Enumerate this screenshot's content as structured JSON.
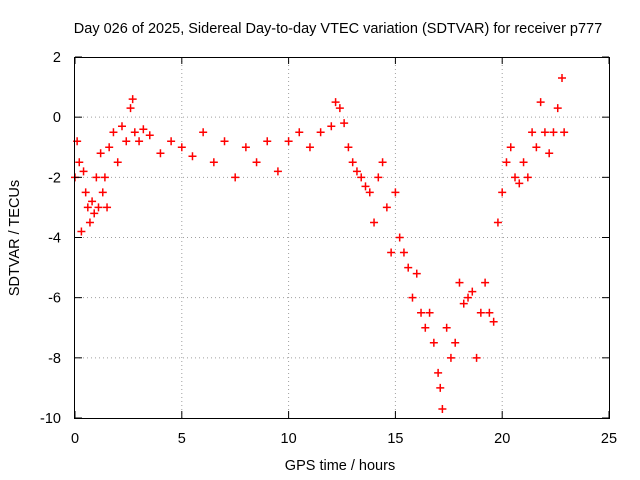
{
  "chart_data": {
    "type": "scatter",
    "title": "Day 026 of 2025, Sidereal Day-to-day VTEC variation (SDTVAR) for receiver p777",
    "xlabel": "GPS time / hours",
    "ylabel": "SDTVAR / TECUs",
    "xlim": [
      0,
      25
    ],
    "ylim": [
      -10,
      2
    ],
    "grid": true,
    "marker": "plus",
    "x_ticks": [
      0,
      5,
      10,
      15,
      20,
      25
    ],
    "x_tick_labels": [
      "0",
      "5",
      "10",
      "15",
      "20",
      "25"
    ],
    "y_ticks": [
      -10,
      -8,
      -6,
      -4,
      -2,
      0,
      2
    ],
    "y_tick_labels": [
      "-10",
      "-8",
      "-6",
      "-4",
      "-2",
      "0",
      "2"
    ],
    "series": [
      {
        "name": "SDTVAR",
        "color": "#ff0000",
        "x": [
          0.0,
          0.1,
          0.2,
          0.3,
          0.4,
          0.5,
          0.6,
          0.7,
          0.8,
          0.9,
          1.0,
          1.1,
          1.2,
          1.3,
          1.4,
          1.5,
          1.6,
          1.8,
          2.0,
          2.2,
          2.4,
          2.6,
          2.7,
          2.8,
          3.0,
          3.2,
          3.5,
          4.0,
          4.5,
          5.0,
          5.5,
          6.0,
          6.5,
          7.0,
          7.5,
          8.0,
          8.5,
          9.0,
          9.5,
          10.0,
          10.5,
          11.0,
          11.5,
          12.0,
          12.2,
          12.4,
          12.6,
          12.8,
          13.0,
          13.2,
          13.4,
          13.6,
          13.8,
          14.0,
          14.2,
          14.4,
          14.6,
          14.8,
          15.0,
          15.2,
          15.4,
          15.6,
          15.8,
          16.0,
          16.2,
          16.4,
          16.6,
          16.8,
          17.0,
          17.1,
          17.2,
          17.4,
          17.6,
          17.8,
          18.0,
          18.2,
          18.4,
          18.6,
          18.8,
          19.0,
          19.2,
          19.4,
          19.6,
          19.8,
          20.0,
          20.2,
          20.4,
          20.6,
          20.8,
          21.0,
          21.2,
          21.4,
          21.6,
          21.8,
          22.0,
          22.2,
          22.4,
          22.6,
          22.8,
          22.9
        ],
        "y": [
          -2.0,
          -0.8,
          -1.5,
          -3.8,
          -1.8,
          -2.5,
          -3.0,
          -3.5,
          -2.8,
          -3.2,
          -2.0,
          -3.0,
          -1.2,
          -2.5,
          -2.0,
          -3.0,
          -1.0,
          -0.5,
          -1.5,
          -0.3,
          -0.8,
          0.3,
          0.6,
          -0.5,
          -0.8,
          -0.4,
          -0.6,
          -1.2,
          -0.8,
          -1.0,
          -1.3,
          -0.5,
          -1.5,
          -0.8,
          -2.0,
          -1.0,
          -1.5,
          -0.8,
          -1.8,
          -0.8,
          -0.5,
          -1.0,
          -0.5,
          -0.3,
          0.5,
          0.3,
          -0.2,
          -1.0,
          -1.5,
          -1.8,
          -2.0,
          -2.3,
          -2.5,
          -3.5,
          -2.0,
          -1.5,
          -3.0,
          -4.5,
          -2.5,
          -4.0,
          -4.5,
          -5.0,
          -6.0,
          -5.2,
          -6.5,
          -7.0,
          -6.5,
          -7.5,
          -8.5,
          -9.0,
          -9.7,
          -7.0,
          -8.0,
          -7.5,
          -5.5,
          -6.2,
          -6.0,
          -5.8,
          -8.0,
          -6.5,
          -5.5,
          -6.5,
          -6.8,
          -3.5,
          -2.5,
          -1.5,
          -1.0,
          -2.0,
          -2.2,
          -1.5,
          -2.0,
          -0.5,
          -1.0,
          0.5,
          -0.5,
          -1.2,
          -0.5,
          0.3,
          1.3,
          -0.5
        ]
      }
    ]
  }
}
